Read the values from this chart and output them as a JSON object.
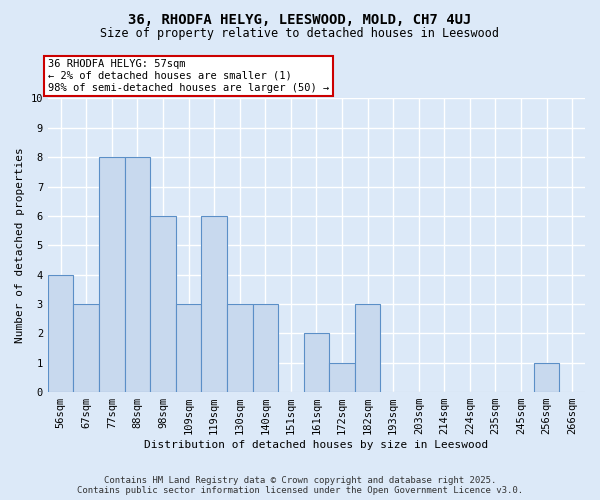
{
  "title": "36, RHODFA HELYG, LEESWOOD, MOLD, CH7 4UJ",
  "subtitle": "Size of property relative to detached houses in Leeswood",
  "xlabel": "Distribution of detached houses by size in Leeswood",
  "ylabel": "Number of detached properties",
  "categories": [
    "56sqm",
    "67sqm",
    "77sqm",
    "88sqm",
    "98sqm",
    "109sqm",
    "119sqm",
    "130sqm",
    "140sqm",
    "151sqm",
    "161sqm",
    "172sqm",
    "182sqm",
    "193sqm",
    "203sqm",
    "214sqm",
    "224sqm",
    "235sqm",
    "245sqm",
    "256sqm",
    "266sqm"
  ],
  "values": [
    4,
    3,
    8,
    8,
    6,
    3,
    6,
    3,
    3,
    0,
    2,
    1,
    3,
    0,
    0,
    0,
    0,
    0,
    0,
    1,
    0
  ],
  "bar_color": "#c8d9ee",
  "bar_edge_color": "#5b8fc7",
  "ylim": [
    0,
    10
  ],
  "yticks": [
    0,
    1,
    2,
    3,
    4,
    5,
    6,
    7,
    8,
    9,
    10
  ],
  "annotation_text": "36 RHODFA HELYG: 57sqm\n← 2% of detached houses are smaller (1)\n98% of semi-detached houses are larger (50) →",
  "annotation_box_color": "#ffffff",
  "annotation_box_edge": "#cc0000",
  "subject_bar_index": 0,
  "footer_line1": "Contains HM Land Registry data © Crown copyright and database right 2025.",
  "footer_line2": "Contains public sector information licensed under the Open Government Licence v3.0.",
  "bg_color": "#dce9f8",
  "plot_bg_color": "#dce9f8",
  "grid_color": "#ffffff",
  "title_fontsize": 10,
  "subtitle_fontsize": 8.5,
  "tick_fontsize": 7.5,
  "axis_label_fontsize": 8,
  "annotation_fontsize": 7.5,
  "footer_fontsize": 6.5
}
